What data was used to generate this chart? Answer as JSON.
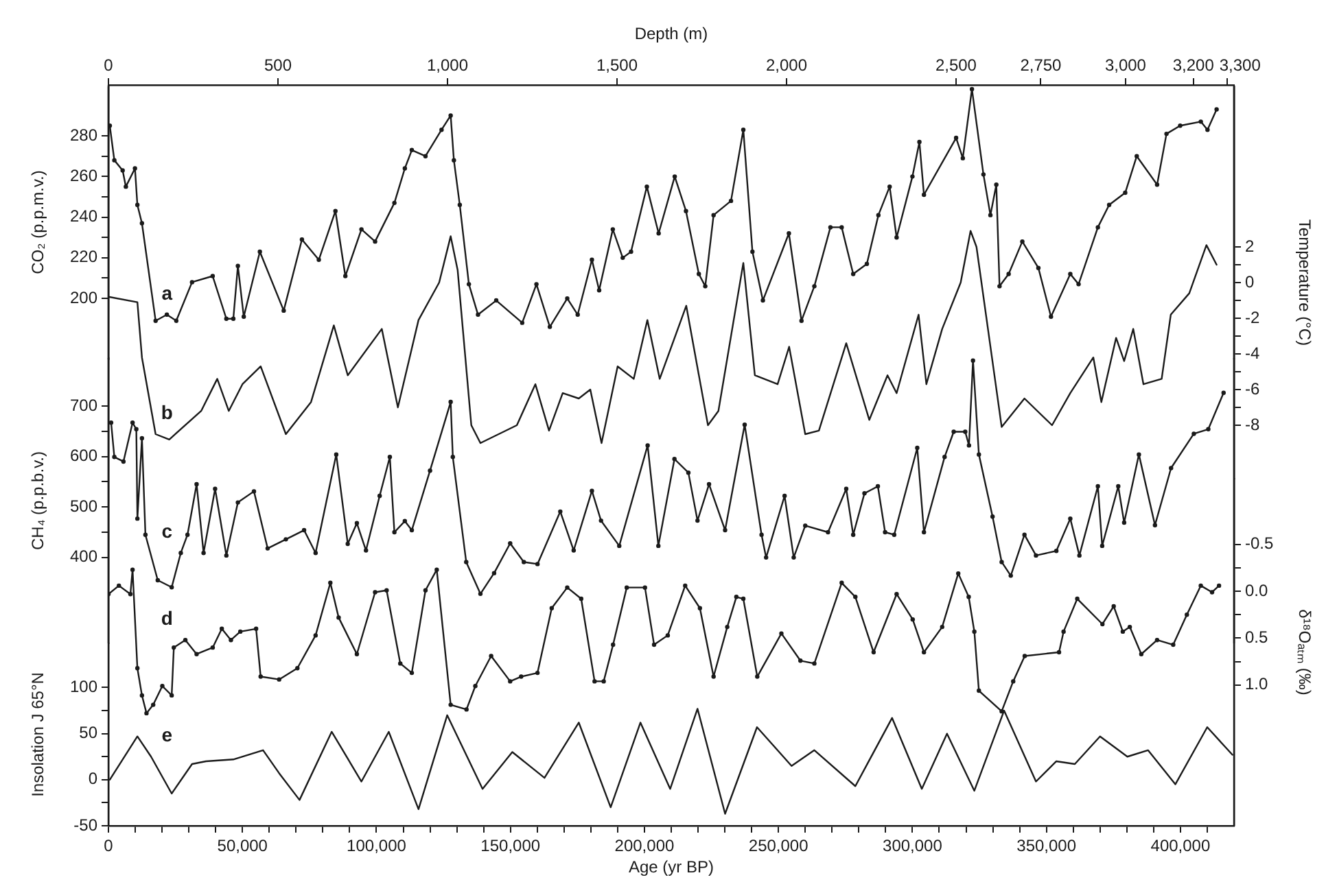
{
  "chart_data": [
    {
      "type": "line",
      "x2label": "Depth (m)",
      "ylabel": "CO₂ (p.p.m.v.)",
      "tick_labels": "y",
      "grid": false,
      "legend": false,
      "xlim": [
        0,
        420000
      ],
      "x2lim": [
        0,
        3320
      ],
      "x2ticks": [
        0,
        500,
        {
          "value": 1000,
          "label": "1,000"
        },
        {
          "value": 1500,
          "label": "1,500"
        },
        {
          "value": 2000,
          "label": "2,000"
        },
        {
          "value": 2500,
          "label": "2,500"
        },
        {
          "value": 2750,
          "label": "2,750"
        },
        {
          "value": 3000,
          "label": "3,000"
        },
        {
          "value": 3200,
          "label": "3,200"
        },
        {
          "value": 3300,
          "label": "3,300"
        }
      ],
      "ylim": [
        170,
        305
      ],
      "yticks": [
        200,
        {
          "value": 210,
          "label": null
        },
        220,
        {
          "value": 230,
          "label": null
        },
        240,
        {
          "value": 250,
          "label": null
        },
        260,
        {
          "value": 270,
          "label": null
        },
        280
      ],
      "series": [
        {
          "name": "a",
          "color": "#1a1a1a",
          "marker": "circle",
          "x": [
            500,
            2200,
            5300,
            6500,
            9900,
            10800,
            12500,
            17600,
            21800,
            25300,
            31200,
            38900,
            44000,
            46600,
            48300,
            50500,
            56500,
            65400,
            72200,
            78500,
            84700,
            88400,
            94400,
            99500,
            106700,
            110600,
            113200,
            118300,
            124300,
            127700,
            128900,
            131100,
            134500,
            137900,
            144700,
            154400,
            159700,
            164700,
            171200,
            175100,
            180400,
            183100,
            188200,
            191900,
            195000,
            200900,
            205300,
            211300,
            215500,
            220300,
            222700,
            225800,
            232300,
            236900,
            240300,
            244200,
            253900,
            258600,
            263400,
            269400,
            273600,
            277900,
            283000,
            287300,
            291500,
            294100,
            300000,
            302600,
            304300,
            316300,
            318800,
            322200,
            326500,
            329100,
            331300,
            332500,
            335900,
            341000,
            347000,
            351700,
            358900,
            362000,
            369200,
            373400,
            379400,
            383700,
            391300,
            394800,
            399900,
            407600,
            410100,
            413500
          ],
          "values": [
            285,
            268,
            263,
            255,
            264,
            246,
            237,
            189,
            192,
            189,
            208,
            211,
            190,
            190,
            216,
            191,
            223,
            194,
            229,
            219,
            243,
            211,
            234,
            228,
            247,
            264,
            273,
            270,
            283,
            290,
            268,
            246,
            207,
            192,
            199,
            188,
            207,
            186,
            200,
            192,
            219,
            204,
            234,
            220,
            223,
            255,
            232,
            260,
            243,
            212,
            206,
            241,
            248,
            283,
            223,
            199,
            232,
            189,
            206,
            235,
            235,
            212,
            217,
            241,
            255,
            230,
            260,
            277,
            251,
            279,
            269,
            303,
            261,
            241,
            256,
            206,
            212,
            228,
            215,
            191,
            212,
            207,
            235,
            246,
            252,
            270,
            256,
            281,
            285,
            287,
            283,
            293
          ]
        }
      ]
    },
    {
      "type": "line",
      "y2label": "Temperature (°C)",
      "tick_labels": "y",
      "grid": false,
      "legend": false,
      "xlim": [
        0,
        420000
      ],
      "y2lim": [
        -11,
        11
      ],
      "y2ticks": [
        -8,
        {
          "value": -7,
          "label": null
        },
        -6,
        {
          "value": -5,
          "label": null
        },
        -4,
        {
          "value": -3,
          "label": null
        },
        -2,
        {
          "value": -1,
          "label": null
        },
        0,
        {
          "value": 1,
          "label": null
        },
        2
      ],
      "series": [
        {
          "name": "b",
          "color": "#1a1a1a",
          "axis": "y2",
          "marker": "none",
          "x": [
            0,
            10800,
            12500,
            17600,
            22700,
            34600,
            40600,
            44900,
            50000,
            56800,
            66200,
            75600,
            84100,
            89300,
            102000,
            108000,
            115700,
            123400,
            127700,
            130300,
            135400,
            138800,
            152400,
            159300,
            164400,
            169500,
            175500,
            179800,
            184000,
            190000,
            196000,
            201100,
            205700,
            215600,
            223700,
            227600,
            236900,
            241200,
            249700,
            254000,
            260000,
            265100,
            275300,
            283900,
            290700,
            294100,
            302300,
            305200,
            311100,
            318000,
            321700,
            323900,
            333300,
            341800,
            352100,
            358900,
            367500,
            370500,
            376000,
            379000,
            382400,
            386200,
            393000,
            396400,
            403300,
            409700,
            413500
          ],
          "values": [
            -0.8,
            -1.1,
            -4.2,
            -8.5,
            -8.8,
            -7.2,
            -5.4,
            -7.2,
            -5.7,
            -4.7,
            -8.5,
            -6.7,
            -2.4,
            -5.2,
            -2.6,
            -7,
            -2.1,
            0,
            2.6,
            0.7,
            -8,
            -9,
            -8,
            -5.7,
            -8.3,
            -6.2,
            -6.5,
            -6,
            -9,
            -4.7,
            -5.4,
            -2.1,
            -5.4,
            -1.3,
            -8,
            -7.2,
            1.1,
            -5.2,
            -5.7,
            -3.6,
            -8.5,
            -8.3,
            -3.4,
            -7.7,
            -5.2,
            -6.2,
            -1.8,
            -5.7,
            -2.6,
            0,
            2.9,
            2,
            -8.1,
            -6.5,
            -8,
            -6.2,
            -4.2,
            -6.7,
            -3.1,
            -4.4,
            -2.6,
            -5.7,
            -5.4,
            -1.8,
            -0.6,
            2.1,
            1
          ]
        }
      ]
    },
    {
      "type": "line",
      "ylabel": "CH₄ (p.p.b.v.)",
      "tick_labels": "y",
      "grid": false,
      "legend": false,
      "xlim": [
        0,
        420000
      ],
      "ylim": [
        230,
        795
      ],
      "yticks": [
        400,
        {
          "value": 450,
          "label": null
        },
        500,
        {
          "value": 550,
          "label": null
        },
        600,
        {
          "value": 650,
          "label": null
        },
        700
      ],
      "series": [
        {
          "name": "c",
          "color": "#1a1a1a",
          "marker": "circle",
          "x": [
            1000,
            2200,
            5600,
            9000,
            10400,
            10800,
            12500,
            13800,
            18400,
            23600,
            27000,
            29500,
            32900,
            35500,
            39800,
            44000,
            48300,
            54300,
            59400,
            66200,
            73000,
            77300,
            85000,
            89300,
            92700,
            96100,
            101200,
            105000,
            106700,
            110600,
            113200,
            120000,
            127700,
            128500,
            133500,
            138800,
            143900,
            149900,
            155000,
            160100,
            168600,
            173600,
            180400,
            183800,
            190600,
            201200,
            205200,
            211200,
            216400,
            219800,
            224100,
            230100,
            237400,
            243700,
            245400,
            252300,
            255700,
            260000,
            268500,
            275300,
            277900,
            282100,
            287100,
            289800,
            293200,
            301800,
            304300,
            312000,
            315400,
            319700,
            321100,
            322600,
            324800,
            329900,
            333300,
            336700,
            341800,
            346100,
            353700,
            358900,
            362300,
            369200,
            370800,
            376800,
            379000,
            384500,
            390500,
            396500,
            405000,
            410400,
            416100
          ],
          "values": [
            667,
            599,
            590,
            667,
            654,
            477,
            636,
            445,
            355,
            341,
            409,
            445,
            545,
            409,
            536,
            404,
            509,
            531,
            418,
            436,
            454,
            409,
            604,
            427,
            468,
            414,
            522,
            599,
            450,
            472,
            454,
            572,
            708,
            599,
            391,
            328,
            369,
            428,
            391,
            387,
            491,
            414,
            532,
            473,
            423,
            622,
            423,
            595,
            568,
            473,
            545,
            454,
            663,
            445,
            400,
            522,
            400,
            463,
            450,
            536,
            445,
            527,
            541,
            450,
            445,
            617,
            450,
            599,
            649,
            649,
            622,
            790,
            604,
            481,
            391,
            364,
            445,
            404,
            413,
            477,
            404,
            541,
            423,
            541,
            469,
            604,
            464,
            577,
            645,
            654,
            726
          ]
        }
      ]
    },
    {
      "type": "line",
      "y2label": "δ¹⁸Oₐₜₘ (‰)",
      "tick_labels": "y",
      "grid": false,
      "legend": false,
      "xlim": [
        0,
        420000
      ],
      "y2lim": [
        2.5,
        -1.2
      ],
      "y2ticks": [
        -0.5,
        {
          "value": -0.25,
          "label": null
        },
        {
          "value": 0,
          "label": "0.0"
        },
        {
          "value": 0.25,
          "label": null
        },
        0.5,
        {
          "value": 0.75,
          "label": null
        },
        {
          "value": 1,
          "label": "1.0"
        }
      ],
      "series": [
        {
          "name": "d",
          "color": "#1a1a1a",
          "axis": "y2",
          "marker": "circle",
          "x": [
            0,
            3900,
            8200,
            9000,
            10800,
            12500,
            14200,
            16700,
            20100,
            23600,
            24400,
            28700,
            32900,
            38900,
            42300,
            45700,
            49200,
            55100,
            56800,
            63700,
            70500,
            77300,
            82800,
            85900,
            92700,
            99500,
            103800,
            108900,
            113200,
            118300,
            122500,
            127700,
            133600,
            136900,
            142800,
            149900,
            154000,
            160100,
            165400,
            171200,
            176400,
            181400,
            184800,
            188300,
            193400,
            200200,
            203600,
            208700,
            215200,
            220700,
            225800,
            230900,
            234300,
            236900,
            242100,
            251100,
            258200,
            263400,
            273600,
            278700,
            285500,
            294100,
            300100,
            304300,
            311100,
            317100,
            321000,
            323100,
            324800,
            333300,
            337600,
            341900,
            354700,
            356400,
            361500,
            370900,
            375100,
            378500,
            381100,
            385400,
            391300,
            397300,
            402400,
            407600,
            411800,
            414400
          ],
          "values": [
            0.03,
            -0.06,
            0.03,
            -0.23,
            0.82,
            1.11,
            1.3,
            1.21,
            1.01,
            1.11,
            0.6,
            0.52,
            0.67,
            0.6,
            0.4,
            0.52,
            0.43,
            0.4,
            0.91,
            0.94,
            0.82,
            0.47,
            -0.09,
            0.28,
            0.67,
            0.01,
            -0.01,
            0.77,
            0.87,
            -0.01,
            -0.23,
            1.21,
            1.26,
            1.01,
            0.69,
            0.96,
            0.91,
            0.87,
            0.18,
            -0.04,
            0.08,
            0.96,
            0.96,
            0.57,
            -0.04,
            -0.04,
            0.57,
            0.47,
            -0.06,
            0.18,
            0.91,
            0.38,
            0.06,
            0.08,
            0.91,
            0.45,
            0.74,
            0.77,
            -0.09,
            0.06,
            0.65,
            0.03,
            0.3,
            0.65,
            0.38,
            -0.19,
            0.06,
            0.43,
            1.06,
            1.28,
            0.96,
            0.69,
            0.65,
            0.43,
            0.08,
            0.35,
            0.16,
            0.43,
            0.38,
            0.67,
            0.52,
            0.57,
            0.25,
            -0.06,
            0.01,
            -0.06
          ]
        }
      ]
    },
    {
      "type": "line",
      "xlabel": "Age (yr BP)",
      "ylabel": "Insolation J 65°N",
      "grid": false,
      "legend": false,
      "xlim": [
        0,
        420000
      ],
      "xticks": [
        0,
        {
          "value": 10000,
          "label": null
        },
        {
          "value": 20000,
          "label": null
        },
        {
          "value": 30000,
          "label": null
        },
        {
          "value": 40000,
          "label": null
        },
        {
          "value": 50000,
          "label": "50,000"
        },
        {
          "value": 60000,
          "label": null
        },
        {
          "value": 70000,
          "label": null
        },
        {
          "value": 80000,
          "label": null
        },
        {
          "value": 90000,
          "label": null
        },
        {
          "value": 100000,
          "label": "100,000"
        },
        {
          "value": 110000,
          "label": null
        },
        {
          "value": 120000,
          "label": null
        },
        {
          "value": 130000,
          "label": null
        },
        {
          "value": 140000,
          "label": null
        },
        {
          "value": 150000,
          "label": "150,000"
        },
        {
          "value": 160000,
          "label": null
        },
        {
          "value": 170000,
          "label": null
        },
        {
          "value": 180000,
          "label": null
        },
        {
          "value": 190000,
          "label": null
        },
        {
          "value": 200000,
          "label": "200,000"
        },
        {
          "value": 210000,
          "label": null
        },
        {
          "value": 220000,
          "label": null
        },
        {
          "value": 230000,
          "label": null
        },
        {
          "value": 240000,
          "label": null
        },
        {
          "value": 250000,
          "label": "250,000"
        },
        {
          "value": 260000,
          "label": null
        },
        {
          "value": 270000,
          "label": null
        },
        {
          "value": 280000,
          "label": null
        },
        {
          "value": 290000,
          "label": null
        },
        {
          "value": 300000,
          "label": "300,000"
        },
        {
          "value": 310000,
          "label": null
        },
        {
          "value": 320000,
          "label": null
        },
        {
          "value": 330000,
          "label": null
        },
        {
          "value": 340000,
          "label": null
        },
        {
          "value": 350000,
          "label": "350,000"
        },
        {
          "value": 360000,
          "label": null
        },
        {
          "value": 370000,
          "label": null
        },
        {
          "value": 380000,
          "label": null
        },
        {
          "value": 390000,
          "label": null
        },
        {
          "value": 400000,
          "label": "400,000"
        },
        {
          "value": 410000,
          "label": null
        }
      ],
      "ylim": [
        -50,
        148
      ],
      "yticks": [
        -50,
        {
          "value": -25,
          "label": null
        },
        0,
        {
          "value": 25,
          "label": null
        },
        50,
        {
          "value": 75,
          "label": null
        },
        100
      ],
      "series": [
        {
          "name": "e",
          "color": "#1a1a1a",
          "marker": "none",
          "x": [
            500,
            10800,
            15900,
            23600,
            31200,
            36400,
            46600,
            57700,
            63700,
            71300,
            83300,
            94400,
            104600,
            115700,
            126400,
            139600,
            150700,
            162700,
            175500,
            187400,
            198500,
            209600,
            219800,
            230100,
            242000,
            254900,
            263400,
            278700,
            292400,
            303500,
            312900,
            323100,
            334200,
            346100,
            353700,
            360600,
            370000,
            380200,
            387900,
            398100,
            410000,
            419400
          ],
          "values": [
            0,
            47,
            25,
            -15,
            17,
            20,
            22,
            32,
            7,
            -22,
            52,
            -2,
            52,
            -32,
            70,
            -10,
            30,
            2,
            62,
            -30,
            62,
            -10,
            77,
            -37,
            57,
            15,
            32,
            -7,
            67,
            -10,
            50,
            -12,
            75,
            -2,
            20,
            17,
            47,
            25,
            32,
            -5,
            57,
            27
          ]
        }
      ]
    }
  ]
}
